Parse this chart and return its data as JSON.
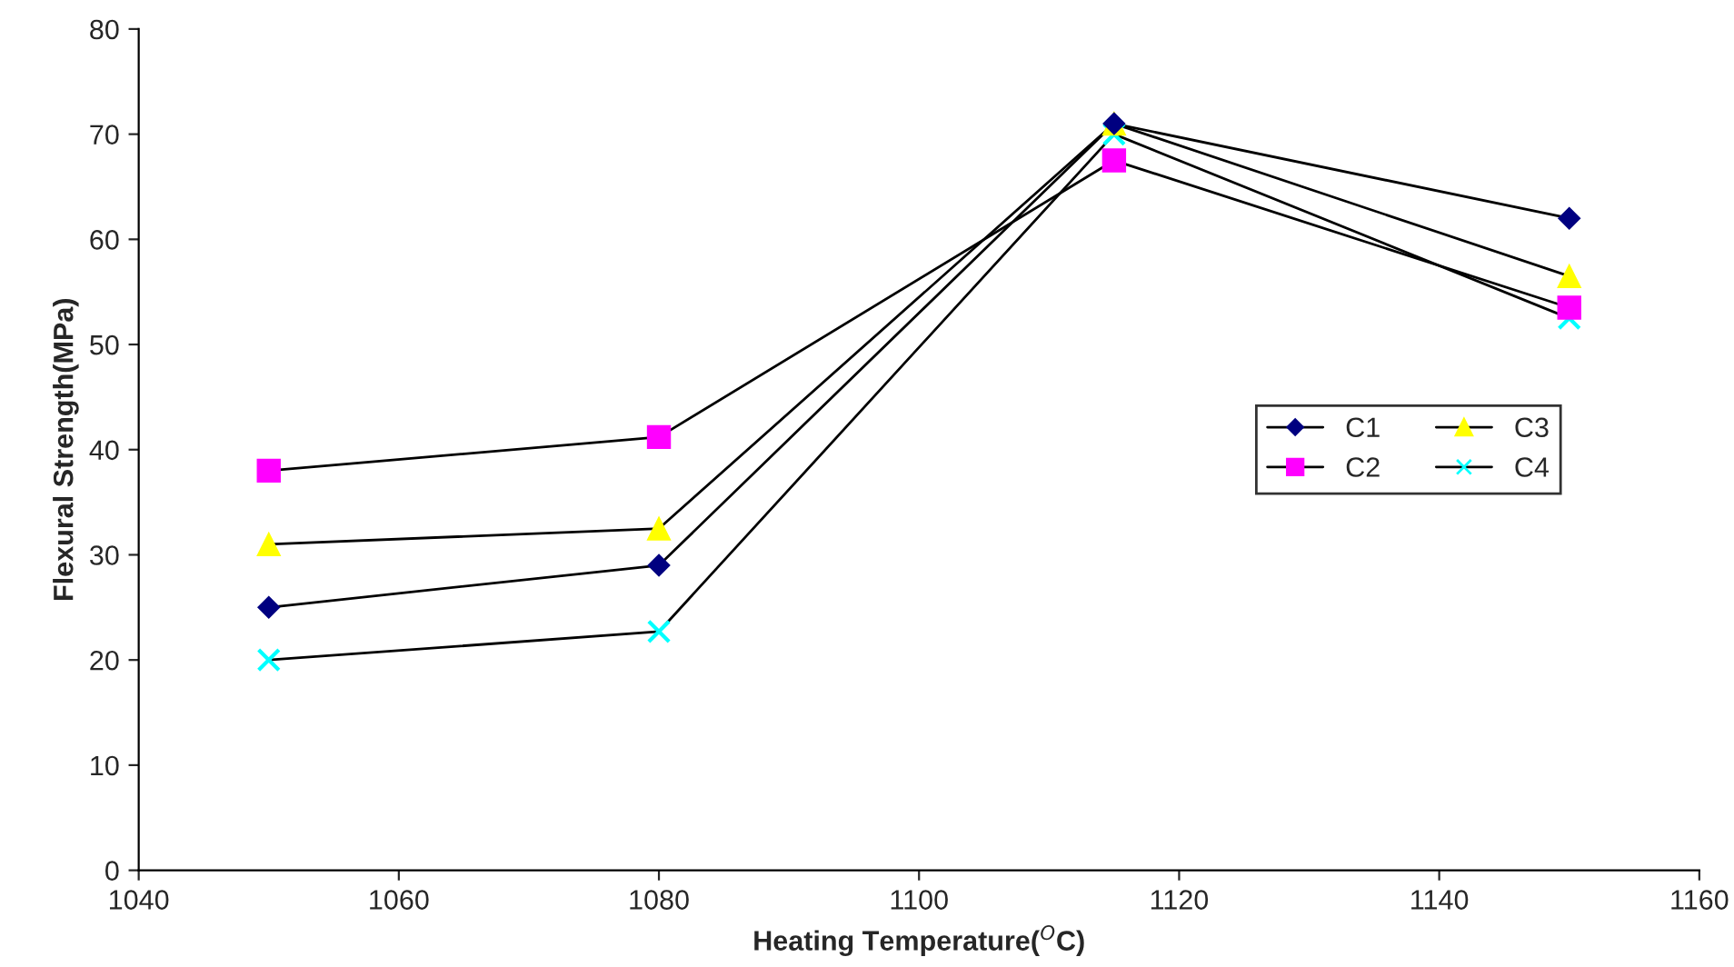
{
  "chart_data": {
    "type": "line",
    "xlabel": "Heating Temperature($^{O}$C)",
    "ylabel": "Flexural Strength(MPa)",
    "x": [
      1050,
      1080,
      1115,
      1150
    ],
    "series": [
      {
        "name": "C1",
        "color": "#000080",
        "marker": "diamond",
        "values": [
          25,
          29,
          71,
          62
        ]
      },
      {
        "name": "C2",
        "color": "#ff00ff",
        "marker": "square",
        "values": [
          38,
          41.2,
          67.5,
          53.5
        ]
      },
      {
        "name": "C3",
        "color": "#ffff00",
        "marker": "triangle",
        "values": [
          31,
          32.5,
          71,
          56.5
        ]
      },
      {
        "name": "C4",
        "color": "#00ffff",
        "marker": "cross",
        "values": [
          20,
          22.7,
          70,
          52.5
        ]
      }
    ],
    "xlim": [
      1040,
      1160
    ],
    "xticks": [
      1040,
      1060,
      1080,
      1100,
      1120,
      1140,
      1160
    ],
    "ylim": [
      0,
      80
    ],
    "yticks": [
      0,
      10,
      20,
      30,
      40,
      50,
      60,
      70,
      80
    ],
    "grid": false,
    "legend": "right",
    "line_style": "solid"
  }
}
